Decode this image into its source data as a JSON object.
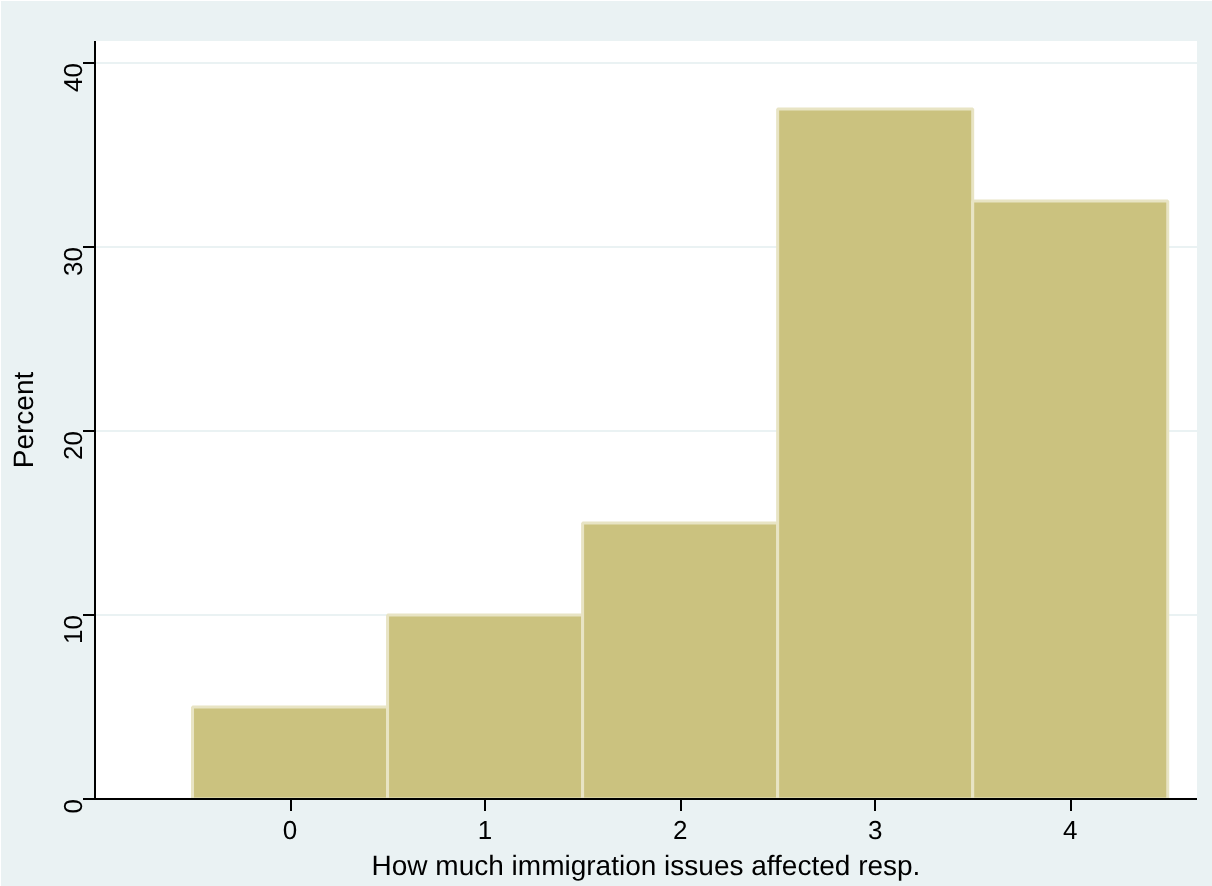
{
  "chart_data": {
    "type": "histogram",
    "xlabel": "How much immigration issues affected resp.",
    "ylabel": "Percent",
    "bins": [
      -0.5,
      0.5,
      1.5,
      2.5,
      3.5,
      4.5
    ],
    "values": [
      5,
      10,
      15,
      37.5,
      32.5
    ],
    "color": "#cbc27f",
    "xlim": [
      -1.0,
      4.65
    ],
    "xticks": [
      0,
      1,
      2,
      3,
      4
    ],
    "ylim": [
      0,
      41.2
    ],
    "yticks": [
      0,
      10,
      20,
      30,
      40
    ],
    "grid": "y"
  }
}
